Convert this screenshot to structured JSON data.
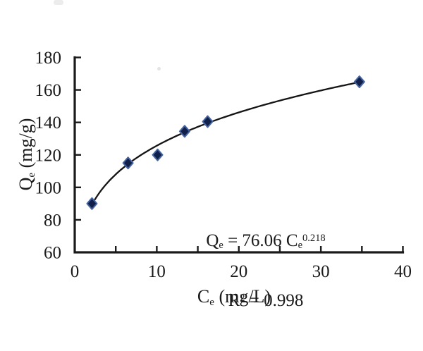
{
  "chart_data": {
    "type": "scatter",
    "title": "",
    "xlabel": "Ce (mg/L)",
    "ylabel": "Qe (mg/g)",
    "xlim": [
      0,
      40
    ],
    "ylim": [
      60,
      180
    ],
    "x_ticks": [
      5,
      10,
      15,
      20,
      25,
      30,
      35,
      40
    ],
    "x_tick_labels": [
      0,
      10,
      20,
      30,
      40
    ],
    "y_ticks": [
      80,
      100,
      120,
      140,
      160,
      180
    ],
    "y_tick_labels": [
      180,
      160,
      140,
      120,
      100,
      80,
      60
    ],
    "grid": false,
    "legend": false,
    "marker": "diamond",
    "series": [
      {
        "name": "experimental points",
        "type": "points",
        "points": [
          [
            2.1,
            90
          ],
          [
            6.5,
            115
          ],
          [
            10.1,
            120
          ],
          [
            13.4,
            134.5
          ],
          [
            16.2,
            140.5
          ],
          [
            34.7,
            165
          ]
        ]
      },
      {
        "name": "power-law fit curve",
        "type": "power_fit",
        "model": "Qe = a * Ce^b",
        "a": 76.06,
        "b": 0.218,
        "r_squared": 0.998,
        "x_start": 2.1,
        "x_end": 34.7
      }
    ],
    "annotation_lines": [
      "Qe = 76.06 Ce^0.218",
      "R² = 0.998"
    ]
  },
  "labels": {
    "y_title": {
      "symbol": "Q",
      "sub": "e",
      "unit": " (mg/g)"
    },
    "x_title": {
      "symbol": "C",
      "sub": "e",
      "unit": " (mg/L)"
    }
  },
  "annotation": {
    "l1_base": "Q",
    "l1_base_sub": "e",
    "l1_mid": " = 76.06 C",
    "l1_mid_sub": "e",
    "l1_exponent": "0.218",
    "l2_base": "R",
    "l2_sup": "2",
    "l2_rest": " = 0.998"
  },
  "colors": {
    "background": "#ffffff",
    "axis": "#1a1a1a",
    "text": "#1a1a1a",
    "curve": "#141414",
    "marker_fill": "#11204a",
    "marker_edge": "#44639f"
  }
}
